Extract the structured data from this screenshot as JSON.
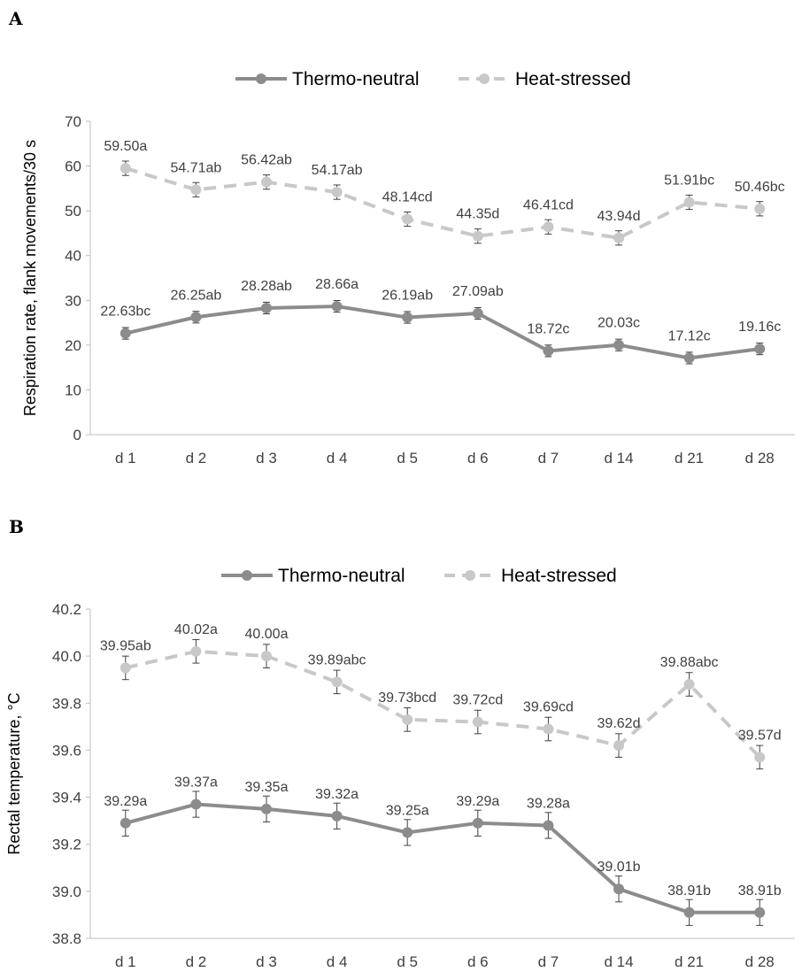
{
  "chart_data": [
    {
      "type": "line",
      "panel": "A",
      "categories": [
        "d 1",
        "d 2",
        "d 3",
        "d 4",
        "d 5",
        "d 6",
        "d 7",
        "d 14",
        "d 21",
        "d 28"
      ],
      "ylabel": "Respiration rate, flank movements/30 s",
      "ylim": [
        0,
        70
      ],
      "yticks": [
        "0",
        "10",
        "20",
        "30",
        "40",
        "50",
        "60",
        "70"
      ],
      "grid": false,
      "legend_position": "top",
      "series": [
        {
          "name": "Thermo-neutral",
          "color": "#8c8c8c",
          "style": "solid",
          "values": [
            22.63,
            26.25,
            28.28,
            28.66,
            26.19,
            27.09,
            18.72,
            20.03,
            17.12,
            19.16
          ],
          "labels": [
            "22.63bc",
            "26.25ab",
            "28.28ab",
            "28.66a",
            "26.19ab",
            "27.09ab",
            "18.72c",
            "20.03c",
            "17.12c",
            "19.16c"
          ],
          "error": [
            1.3,
            1.3,
            1.3,
            1.3,
            1.3,
            1.3,
            1.3,
            1.3,
            1.3,
            1.3
          ]
        },
        {
          "name": "Heat-stressed",
          "color": "#c8c8c8",
          "style": "dashed",
          "values": [
            59.5,
            54.71,
            56.42,
            54.17,
            48.14,
            44.35,
            46.41,
            43.94,
            51.91,
            50.46
          ],
          "labels": [
            "59.50a",
            "54.71ab",
            "56.42ab",
            "54.17ab",
            "48.14cd",
            "44.35d",
            "46.41cd",
            "43.94d",
            "51.91bc",
            "50.46bc"
          ],
          "error": [
            1.6,
            1.6,
            1.6,
            1.6,
            1.6,
            1.6,
            1.6,
            1.6,
            1.6,
            1.6
          ]
        }
      ]
    },
    {
      "type": "line",
      "panel": "B",
      "categories": [
        "d 1",
        "d 2",
        "d 3",
        "d 4",
        "d 5",
        "d 6",
        "d 7",
        "d 14",
        "d 21",
        "d 28"
      ],
      "ylabel": "Rectal temperature, °C",
      "ylim": [
        38.8,
        40.2
      ],
      "yticks": [
        "38.8",
        "39.0",
        "39.2",
        "39.4",
        "39.6",
        "39.8",
        "40.0",
        "40.2"
      ],
      "grid": false,
      "legend_position": "top",
      "series": [
        {
          "name": "Thermo-neutral",
          "color": "#8c8c8c",
          "style": "solid",
          "values": [
            39.29,
            39.37,
            39.35,
            39.32,
            39.25,
            39.29,
            39.28,
            39.01,
            38.91,
            38.91
          ],
          "labels": [
            "39.29a",
            "39.37a",
            "39.35a",
            "39.32a",
            "39.25a",
            "39.29a",
            "39.28a",
            "39.01b",
            "38.91b",
            "38.91b"
          ],
          "error": [
            0.055,
            0.055,
            0.055,
            0.055,
            0.055,
            0.055,
            0.055,
            0.055,
            0.055,
            0.055
          ]
        },
        {
          "name": "Heat-stressed",
          "color": "#c8c8c8",
          "style": "dashed",
          "values": [
            39.95,
            40.02,
            40.0,
            39.89,
            39.73,
            39.72,
            39.69,
            39.62,
            39.88,
            39.57
          ],
          "labels": [
            "39.95ab",
            "40.02a",
            "40.00a",
            "39.89abc",
            "39.73bcd",
            "39.72cd",
            "39.69cd",
            "39.62d",
            "39.88abc",
            "39.57d"
          ],
          "error": [
            0.05,
            0.05,
            0.05,
            0.05,
            0.05,
            0.05,
            0.05,
            0.05,
            0.05,
            0.05
          ]
        }
      ]
    }
  ]
}
